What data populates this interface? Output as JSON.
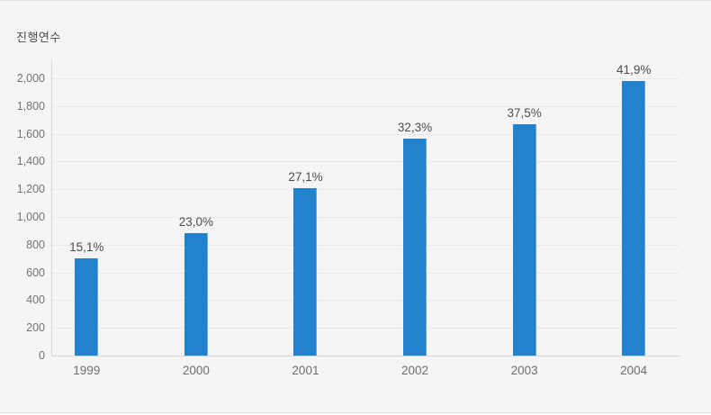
{
  "chart_title": "진행연수",
  "colors": {
    "background": "#f5f5f6",
    "bar": "#2182ce",
    "bar_edge_highlight": "#6aa5da",
    "gridline": "#e9e9ea",
    "axis": "#d5d5d6",
    "label_text": "#4d4d4d",
    "tick_text": "#737373"
  },
  "chart_data": {
    "type": "bar",
    "title": "진행연수",
    "categories": [
      "1999",
      "2000",
      "2001",
      "2002",
      "2003",
      "2004"
    ],
    "values": [
      700,
      880,
      1210,
      1565,
      1670,
      1980
    ],
    "bar_labels": [
      "15,1%",
      "23,0%",
      "27,1%",
      "32,3%",
      "37,5%",
      "41,9%"
    ],
    "percent_values": [
      15.1,
      23.0,
      27.1,
      32.3,
      37.5,
      41.9
    ],
    "xlabel": "",
    "ylabel": "",
    "ylim": [
      0,
      2000
    ],
    "ytick_step": 200,
    "ytick_labels": [
      "0",
      "200",
      "400",
      "600",
      "800",
      "1,000",
      "1,200",
      "1,400",
      "1,600",
      "1,800",
      "2,000"
    ],
    "grid": true,
    "legend": false
  }
}
